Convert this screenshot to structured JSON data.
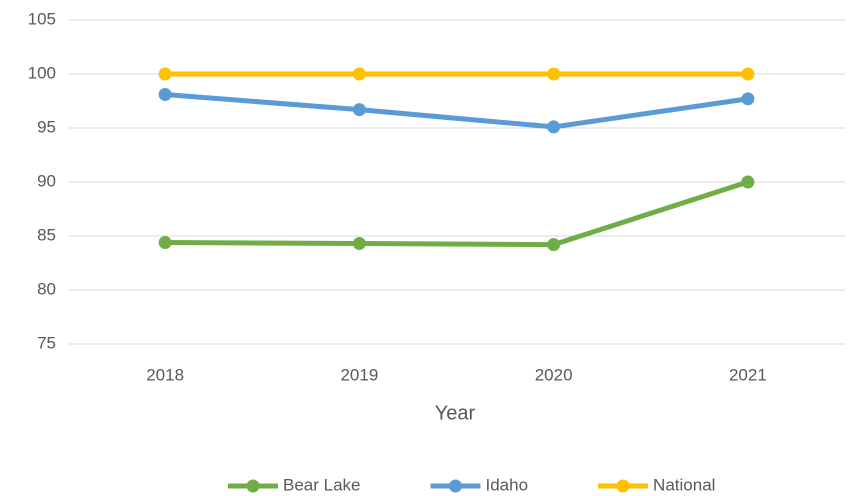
{
  "chart_data": {
    "type": "line",
    "x_label": "Year",
    "categories": [
      "2018",
      "2019",
      "2020",
      "2021"
    ],
    "series": [
      {
        "name": "Bear Lake",
        "color": "#70ad47",
        "values": [
          84.4,
          84.3,
          84.2,
          90.0
        ]
      },
      {
        "name": "Idaho",
        "color": "#5b9bd5",
        "values": [
          98.1,
          96.7,
          95.1,
          97.7
        ]
      },
      {
        "name": "National",
        "color": "#ffc000",
        "values": [
          100,
          100,
          100,
          100
        ]
      }
    ],
    "ylim": [
      75,
      105
    ],
    "yticks": [
      75,
      80,
      85,
      90,
      95,
      100,
      105
    ],
    "grid": true,
    "legend": "bottom"
  }
}
